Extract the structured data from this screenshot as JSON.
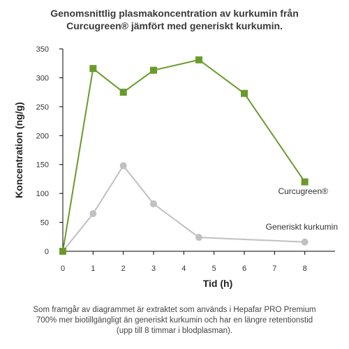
{
  "chart_data": {
    "type": "line",
    "title_lines": [
      "Genomsnittlig plasmakoncentration av kurkumin från",
      "Curcugreen® jämfört med generiskt kurkumin."
    ],
    "xlabel": "Tid (h)",
    "ylabel": "Koncentration (ng/g)",
    "xlim": [
      0,
      9
    ],
    "ylim": [
      0,
      350
    ],
    "x_ticks": [
      0,
      1,
      2,
      3,
      4,
      5,
      6,
      7,
      8
    ],
    "y_ticks": [
      0,
      50,
      100,
      150,
      200,
      250,
      300,
      350
    ],
    "grid": false,
    "series": [
      {
        "name": "Curcugreen®",
        "color": "#6a9a2a",
        "marker": "square",
        "points": [
          [
            0,
            0
          ],
          [
            1,
            316
          ],
          [
            2,
            275
          ],
          [
            3,
            313
          ],
          [
            4.5,
            331
          ],
          [
            6,
            273
          ],
          [
            8,
            120
          ]
        ]
      },
      {
        "name": "Generiskt kurkumin",
        "color": "#c0c0c0",
        "marker": "circle",
        "points": [
          [
            0,
            0
          ],
          [
            1,
            65
          ],
          [
            2,
            148
          ],
          [
            3,
            82
          ],
          [
            4.5,
            24
          ],
          [
            8,
            16
          ]
        ]
      }
    ]
  },
  "caption_lines": [
    "Som framgår av diagrammet är extraktet som används i Hepafar PRO Premium",
    "700% mer biotillgängligt än generiskt kurkumin och har en längre retentionstid",
    "(upp till 8 timmar i blodplasman)."
  ]
}
